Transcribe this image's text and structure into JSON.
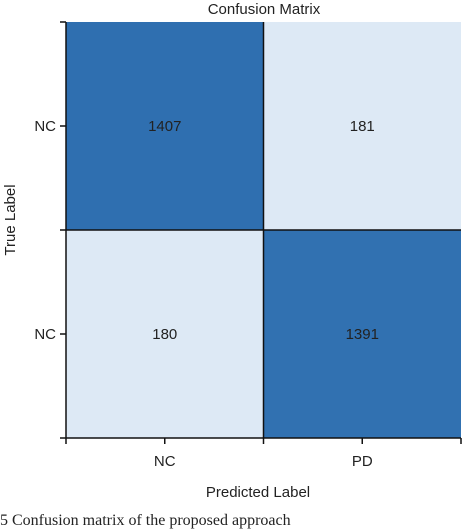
{
  "chart_data": {
    "type": "heatmap",
    "title": "Confusion Matrix",
    "xlabel": "Predicted Label",
    "ylabel": "True Label",
    "x_categories": [
      "NC",
      "PD"
    ],
    "y_categories": [
      "NC",
      "NC"
    ],
    "values": [
      [
        1407,
        181
      ],
      [
        180,
        1391
      ]
    ],
    "colormap": "Blues",
    "colors": {
      "high": "#2f6fb0",
      "high_alt": "#3a80b4",
      "low": "#dde9f5"
    }
  },
  "caption": "5 Confusion matrix of the proposed approach"
}
